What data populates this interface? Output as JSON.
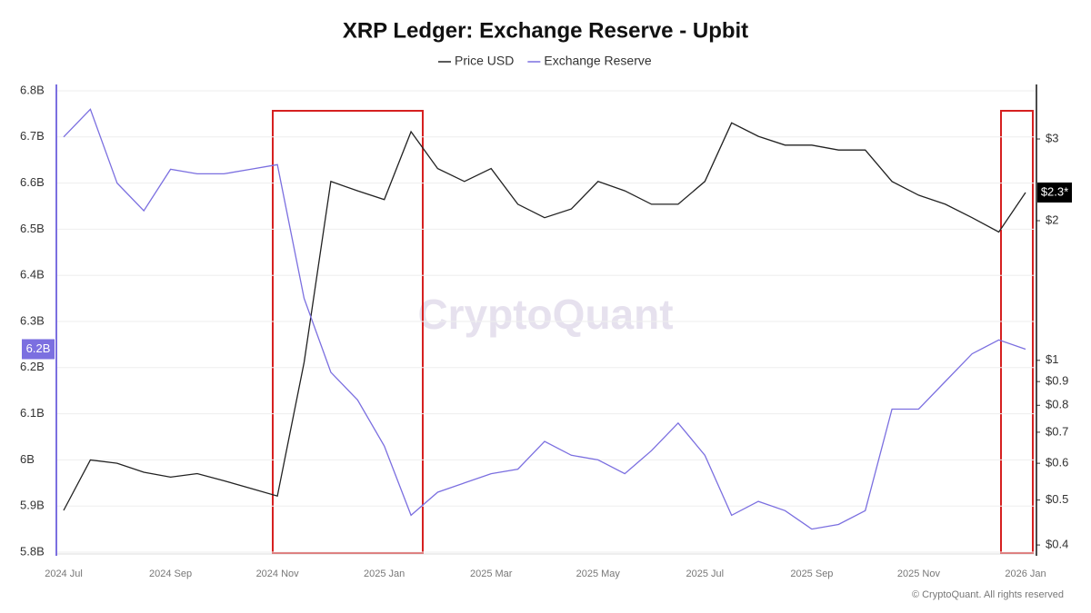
{
  "chart_data": {
    "type": "line",
    "title": "XRP Ledger: Exchange Reserve - Upbit",
    "watermark": "CryptoQuant",
    "credit": "© CryptoQuant. All rights reserved",
    "categories": [
      "2024 Jul",
      null,
      null,
      null,
      "2024 Sep",
      null,
      null,
      null,
      "2024 Nov",
      null,
      null,
      null,
      "2025 Jan",
      null,
      null,
      null,
      "2025 Mar",
      null,
      null,
      null,
      "2025 May",
      null,
      null,
      null,
      "2025 Jul",
      null,
      null,
      null,
      "2025 Sep",
      null,
      null,
      null,
      "2025 Nov",
      null,
      null,
      null,
      "2026 Jan"
    ],
    "series": [
      {
        "name": "Price USD",
        "color": "#222222",
        "axis": "y2",
        "end_label": "$2.3*",
        "values": [
          0.475,
          0.61,
          0.6,
          0.574,
          0.56,
          0.57,
          0.55,
          0.53,
          0.51,
          0.99,
          2.43,
          2.32,
          2.22,
          3.11,
          2.59,
          2.43,
          2.59,
          2.17,
          2.03,
          2.12,
          2.43,
          2.32,
          2.17,
          2.17,
          2.43,
          3.25,
          3.04,
          2.91,
          2.91,
          2.84,
          2.84,
          2.43,
          2.27,
          2.17,
          2.03,
          1.89,
          2.3
        ]
      },
      {
        "name": "Exchange Reserve",
        "color": "#7b6fe0",
        "end_label": "6.2B",
        "values": [
          6700000000,
          6760000000,
          6600000000,
          6540000000,
          6630000000,
          6620000000,
          6620000000,
          6630000000,
          6640000000,
          6350000000,
          6190000000,
          6130000000,
          6030000000,
          5880000000,
          5930000000,
          5950000000,
          5970000000,
          5980000000,
          6040000000,
          6010000000,
          6000000000,
          5970000000,
          6020000000,
          6080000000,
          6010000000,
          5880000000,
          5910000000,
          5890000000,
          5850000000,
          5860000000,
          5890000000,
          6110000000,
          6110000000,
          6170000000,
          6230000000,
          6260000000,
          6240000000
        ]
      }
    ],
    "ylim": [
      5800000000,
      6800000000
    ],
    "yticks": [
      {
        "value": 5800000000,
        "label": "5.8B"
      },
      {
        "value": 5900000000,
        "label": "5.9B"
      },
      {
        "value": 6000000000,
        "label": "6B"
      },
      {
        "value": 6100000000,
        "label": "6.1B"
      },
      {
        "value": 6200000000,
        "label": "6.2B"
      },
      {
        "value": 6300000000,
        "label": "6.3B"
      },
      {
        "value": 6400000000,
        "label": "6.4B"
      },
      {
        "value": 6500000000,
        "label": "6.5B"
      },
      {
        "value": 6600000000,
        "label": "6.6B"
      },
      {
        "value": 6700000000,
        "label": "6.7B"
      },
      {
        "value": 6800000000,
        "label": "6.8B"
      }
    ],
    "y2lim": [
      0.386,
      3.81
    ],
    "y2_log": true,
    "y2ticks": [
      {
        "value": 3,
        "label": "$3"
      },
      {
        "value": 2,
        "label": "$2"
      },
      {
        "value": 1,
        "label": "$1"
      },
      {
        "value": 0.9,
        "label": "$0.9"
      },
      {
        "value": 0.8,
        "label": "$0.8"
      },
      {
        "value": 0.7,
        "label": "$0.7"
      },
      {
        "value": 0.6,
        "label": "$0.6"
      },
      {
        "value": 0.5,
        "label": "$0.5"
      },
      {
        "value": 0.4,
        "label": "$0.4"
      }
    ],
    "grid": true
  }
}
